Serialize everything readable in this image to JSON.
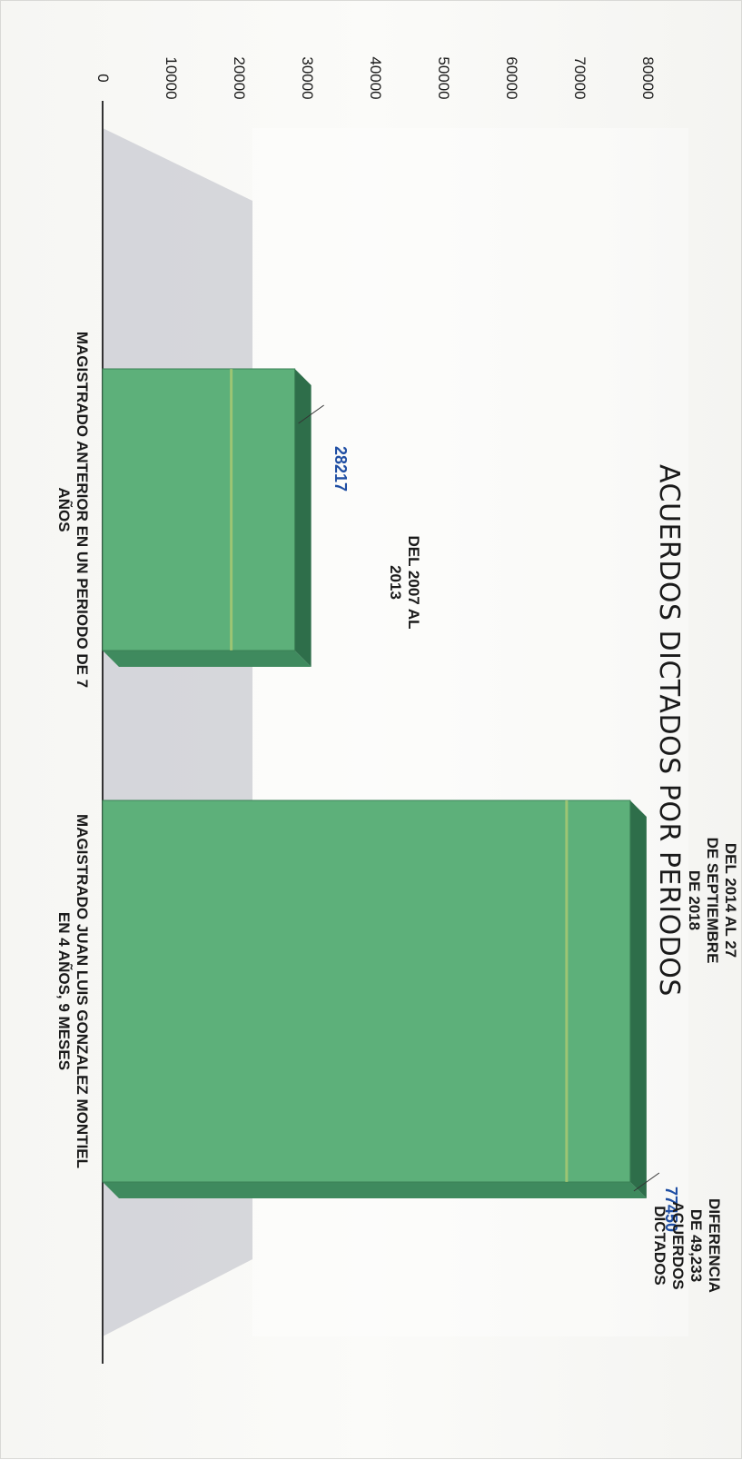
{
  "chart_data": {
    "type": "bar",
    "title": "ACUERDOS DICTADOS POR PERIODOS",
    "categories": [
      "MAGISTRADO ANTERIOR EN UN PERIODO DE 7 AÑOS",
      "MAGISTRADO JUAN LUIS GONZALEZ MONTIEL EN 4 AÑOS, 9 MESES"
    ],
    "values": [
      28217,
      77450
    ],
    "data_labels": [
      "28217",
      "77450"
    ],
    "period_labels": [
      [
        "DEL 2007 AL",
        "2013"
      ],
      [
        "DEL 2014 AL 27",
        "DE SEPTIEMBRE",
        "DE 2018"
      ]
    ],
    "category_lines": [
      [
        "MAGISTRADO ANTERIOR EN UN PERIODO DE 7",
        "AÑOS"
      ],
      [
        "MAGISTRADO JUAN LUIS GONZALEZ MONTIEL",
        "EN 4 AÑOS, 9 MESES"
      ]
    ],
    "annotation": [
      "DIFERENCIA",
      "DE 49,233",
      "ACUERDOS",
      "DICTADOS"
    ],
    "y_ticks": [
      "0",
      "10000",
      "20000",
      "30000",
      "40000",
      "50000",
      "60000",
      "70000",
      "80000"
    ],
    "ylim": [
      0,
      80000
    ],
    "xlabel": "",
    "ylabel": "",
    "grid": false,
    "orientation": "rotated 90 degrees clockwise",
    "colors": {
      "bar_front": "#5db07a",
      "bar_top": "#2e6e4a",
      "bar_side": "#3f8a5e",
      "value_label": "#1f4ea3",
      "floor": "#c9cbd2"
    }
  }
}
